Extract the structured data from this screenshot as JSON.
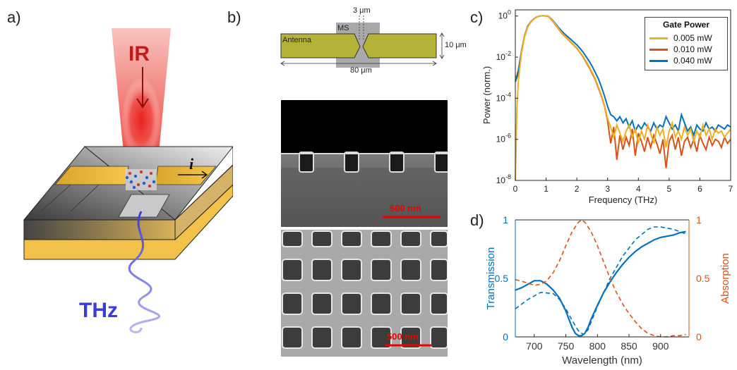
{
  "panels": {
    "a": {
      "label": "a)",
      "ir_label": "IR",
      "thz_label": "THz",
      "current_label": "i"
    },
    "b": {
      "label": "b)",
      "gap_label": "3 μm",
      "ms_label": "MS",
      "antenna_label": "Antenna",
      "height_label": "10 μm",
      "length_label": "80 μm",
      "scale_bar_top": "500 nm",
      "scale_bar_bottom": "500 nm"
    },
    "c": {
      "label": "c)"
    },
    "d": {
      "label": "d)"
    }
  },
  "colors": {
    "antenna": "#b5b238",
    "ir_red": "#e8201c",
    "thz_blue": "#3b3bd6",
    "gold": "#f2c14a",
    "series_yellow": "#edb120",
    "series_orange": "#d95319",
    "series_blue": "#0072bd"
  },
  "chart_data": [
    {
      "id": "c",
      "type": "line",
      "xlabel": "Frequency (THz)",
      "ylabel": "Power (norm.)",
      "xlim": [
        0,
        7
      ],
      "ylim_log10": [
        -8,
        0.3
      ],
      "y_scale": "log",
      "x_ticks": [
        "0",
        "1",
        "2",
        "3",
        "4",
        "5",
        "6",
        "7"
      ],
      "y_ticks": [
        {
          "base": "10",
          "exp": "0"
        },
        {
          "base": "10",
          "exp": "-2"
        },
        {
          "base": "10",
          "exp": "-4"
        },
        {
          "base": "10",
          "exp": "-6"
        },
        {
          "base": "10",
          "exp": "-8"
        }
      ],
      "legend_title": "Gate Power",
      "legend_position": "top-right",
      "series": [
        {
          "name": "0.005 mW",
          "color": "#edb120",
          "x": [
            0,
            0.05,
            0.1,
            0.2,
            0.3,
            0.4,
            0.5,
            0.6,
            0.7,
            0.8,
            0.9,
            1.0,
            1.05,
            1.1,
            1.2,
            1.3,
            1.4,
            1.5,
            1.6,
            1.7,
            1.8,
            1.9,
            2.0,
            2.1,
            2.2,
            2.3,
            2.4,
            2.5,
            2.6,
            2.7,
            2.8,
            2.9,
            3.0,
            3.1,
            3.2,
            3.3,
            3.4,
            3.5,
            3.6,
            3.7,
            3.8,
            3.9,
            4.0,
            4.1,
            4.2,
            4.3,
            4.4,
            4.5,
            4.6,
            4.7,
            4.8,
            4.9,
            5.0,
            5.1,
            5.2,
            5.3,
            5.4,
            5.5,
            5.6,
            5.7,
            5.8,
            5.9,
            6.0,
            6.1,
            6.2,
            6.3,
            6.4,
            6.5,
            6.6,
            6.7,
            6.8,
            6.9,
            7.0
          ],
          "y_log10": [
            -8,
            -4.5,
            -3.1,
            -1.8,
            -1.0,
            -0.55,
            -0.3,
            -0.15,
            -0.05,
            0.0,
            0.02,
            0.0,
            0.0,
            -0.05,
            -0.2,
            -0.4,
            -0.6,
            -0.8,
            -0.95,
            -1.1,
            -1.25,
            -1.4,
            -1.55,
            -1.75,
            -1.95,
            -2.2,
            -2.45,
            -2.75,
            -3.05,
            -3.45,
            -3.85,
            -4.35,
            -5.0,
            -5.4,
            -5.9,
            -5.3,
            -5.7,
            -6.1,
            -5.6,
            -5.3,
            -5.9,
            -5.5,
            -6.2,
            -5.6,
            -6.0,
            -5.3,
            -5.7,
            -6.2,
            -5.4,
            -5.8,
            -5.5,
            -6.4,
            -5.6,
            -5.2,
            -5.9,
            -5.6,
            -6.0,
            -5.4,
            -5.8,
            -5.5,
            -6.1,
            -5.6,
            -5.9,
            -5.3,
            -5.8,
            -5.5,
            -6.0,
            -5.5,
            -5.7,
            -5.6,
            -5.9,
            -5.7,
            -5.5
          ]
        },
        {
          "name": "0.010 mW",
          "color": "#d95319",
          "x": [
            0,
            0.05,
            0.1,
            0.2,
            0.3,
            0.4,
            0.5,
            0.6,
            0.7,
            0.8,
            0.9,
            1.0,
            1.05,
            1.1,
            1.2,
            1.3,
            1.4,
            1.5,
            1.6,
            1.7,
            1.8,
            1.9,
            2.0,
            2.1,
            2.2,
            2.3,
            2.4,
            2.5,
            2.6,
            2.7,
            2.8,
            2.9,
            3.0,
            3.1,
            3.2,
            3.3,
            3.4,
            3.5,
            3.6,
            3.7,
            3.8,
            3.9,
            4.0,
            4.1,
            4.2,
            4.3,
            4.4,
            4.5,
            4.6,
            4.7,
            4.8,
            4.9,
            5.0,
            5.1,
            5.2,
            5.3,
            5.4,
            5.5,
            5.6,
            5.7,
            5.8,
            5.9,
            6.0,
            6.1,
            6.2,
            6.3,
            6.4,
            6.5,
            6.6,
            6.7,
            6.8,
            6.9,
            7.0
          ],
          "y_log10": [
            -3.0,
            -2.9,
            -2.6,
            -1.7,
            -0.95,
            -0.5,
            -0.28,
            -0.14,
            -0.04,
            0.0,
            0.02,
            0.0,
            0.0,
            -0.06,
            -0.22,
            -0.42,
            -0.62,
            -0.82,
            -0.97,
            -1.12,
            -1.27,
            -1.42,
            -1.57,
            -1.77,
            -1.98,
            -2.25,
            -2.5,
            -2.8,
            -3.1,
            -3.5,
            -3.9,
            -4.4,
            -5.1,
            -6.2,
            -5.4,
            -7.0,
            -5.8,
            -6.5,
            -5.9,
            -6.3,
            -5.5,
            -6.8,
            -5.7,
            -6.1,
            -6.6,
            -5.9,
            -6.4,
            -5.8,
            -6.2,
            -6.7,
            -6.0,
            -7.4,
            -6.1,
            -5.8,
            -6.5,
            -5.9,
            -6.8,
            -6.1,
            -5.9,
            -6.4,
            -6.0,
            -6.6,
            -5.8,
            -6.2,
            -6.5,
            -5.9,
            -6.3,
            -6.0,
            -6.1,
            -6.4,
            -5.9,
            -6.2,
            -6.0
          ]
        },
        {
          "name": "0.040 mW",
          "color": "#0072bd",
          "x": [
            0,
            0.05,
            0.1,
            0.2,
            0.3,
            0.4,
            0.5,
            0.6,
            0.7,
            0.8,
            0.9,
            1.0,
            1.05,
            1.1,
            1.2,
            1.3,
            1.4,
            1.5,
            1.6,
            1.7,
            1.8,
            1.9,
            2.0,
            2.1,
            2.2,
            2.3,
            2.4,
            2.5,
            2.6,
            2.7,
            2.8,
            2.9,
            3.0,
            3.1,
            3.2,
            3.3,
            3.4,
            3.5,
            3.6,
            3.7,
            3.8,
            3.9,
            4.0,
            4.1,
            4.2,
            4.3,
            4.4,
            4.5,
            4.6,
            4.7,
            4.8,
            4.9,
            5.0,
            5.1,
            5.2,
            5.3,
            5.4,
            5.5,
            5.6,
            5.7,
            5.8,
            5.9,
            6.0,
            6.1,
            6.2,
            6.3,
            6.4,
            6.5,
            6.6,
            6.7,
            6.8,
            6.9,
            7.0
          ],
          "y_log10": [
            -3.2,
            -3.0,
            -2.7,
            -1.75,
            -1.0,
            -0.52,
            -0.3,
            -0.15,
            -0.05,
            0.0,
            0.02,
            0.0,
            0.0,
            -0.04,
            -0.18,
            -0.36,
            -0.55,
            -0.72,
            -0.87,
            -1.0,
            -1.13,
            -1.27,
            -1.4,
            -1.57,
            -1.75,
            -1.97,
            -2.2,
            -2.45,
            -2.75,
            -3.05,
            -3.45,
            -3.9,
            -4.4,
            -4.8,
            -4.9,
            -5.1,
            -4.9,
            -5.2,
            -5.0,
            -5.4,
            -5.1,
            -5.6,
            -5.3,
            -5.5,
            -5.2,
            -5.4,
            -5.6,
            -5.2,
            -5.5,
            -5.3,
            -5.4,
            -4.9,
            -5.2,
            -5.5,
            -5.3,
            -5.6,
            -4.8,
            -5.2,
            -5.6,
            -5.4,
            -5.8,
            -5.3,
            -5.5,
            -5.6,
            -5.2,
            -5.5,
            -5.4,
            -5.6,
            -5.3,
            -5.4,
            -5.5,
            -5.3,
            -5.4
          ]
        }
      ]
    },
    {
      "id": "d",
      "type": "line",
      "xlabel": "Wavelength (nm)",
      "ylabel_left": "Transmission",
      "ylabel_right": "Absorption",
      "xlim": [
        670,
        945
      ],
      "ylim": [
        0,
        1
      ],
      "x_ticks": [
        "700",
        "750",
        "800",
        "850",
        "900"
      ],
      "y_ticks_left": [
        "0",
        "0.5",
        "1"
      ],
      "y_ticks_right": [
        "0",
        "0.5",
        "1"
      ],
      "series": [
        {
          "role": "transmission measured",
          "color": "#0072bd",
          "style": "solid",
          "x": [
            670,
            680,
            690,
            700,
            710,
            720,
            730,
            740,
            750,
            755,
            760,
            765,
            770,
            775,
            780,
            785,
            790,
            800,
            810,
            820,
            830,
            840,
            850,
            860,
            870,
            880,
            890,
            900,
            910,
            920,
            930,
            940
          ],
          "y": [
            0.4,
            0.42,
            0.45,
            0.48,
            0.48,
            0.45,
            0.4,
            0.33,
            0.22,
            0.15,
            0.08,
            0.03,
            0.01,
            0.01,
            0.03,
            0.08,
            0.15,
            0.27,
            0.38,
            0.47,
            0.55,
            0.62,
            0.68,
            0.73,
            0.77,
            0.8,
            0.83,
            0.85,
            0.86,
            0.87,
            0.89,
            0.9
          ]
        },
        {
          "role": "transmission simulated",
          "color": "#0072bd",
          "style": "dashed",
          "x": [
            670,
            690,
            710,
            730,
            740,
            750,
            760,
            770,
            778,
            785,
            800,
            820,
            840,
            860,
            880,
            890,
            900,
            910,
            920,
            930,
            940
          ],
          "y": [
            0.24,
            0.32,
            0.38,
            0.37,
            0.32,
            0.24,
            0.14,
            0.05,
            0.02,
            0.06,
            0.26,
            0.5,
            0.69,
            0.83,
            0.92,
            0.94,
            0.94,
            0.93,
            0.92,
            0.9,
            0.88
          ]
        },
        {
          "role": "absorption simulated",
          "color": "#d95319",
          "style": "dashed",
          "x": [
            670,
            690,
            700,
            710,
            720,
            730,
            740,
            750,
            760,
            770,
            775,
            780,
            790,
            800,
            810,
            820,
            830,
            840,
            850,
            860,
            870,
            880,
            890,
            900,
            910,
            920,
            930,
            940
          ],
          "y": [
            0.49,
            0.46,
            0.44,
            0.45,
            0.48,
            0.55,
            0.65,
            0.78,
            0.9,
            0.98,
            1.0,
            0.98,
            0.9,
            0.78,
            0.64,
            0.5,
            0.38,
            0.28,
            0.2,
            0.13,
            0.07,
            0.03,
            0.01,
            0.0,
            0.0,
            0.01,
            0.01,
            0.02
          ]
        }
      ]
    }
  ]
}
